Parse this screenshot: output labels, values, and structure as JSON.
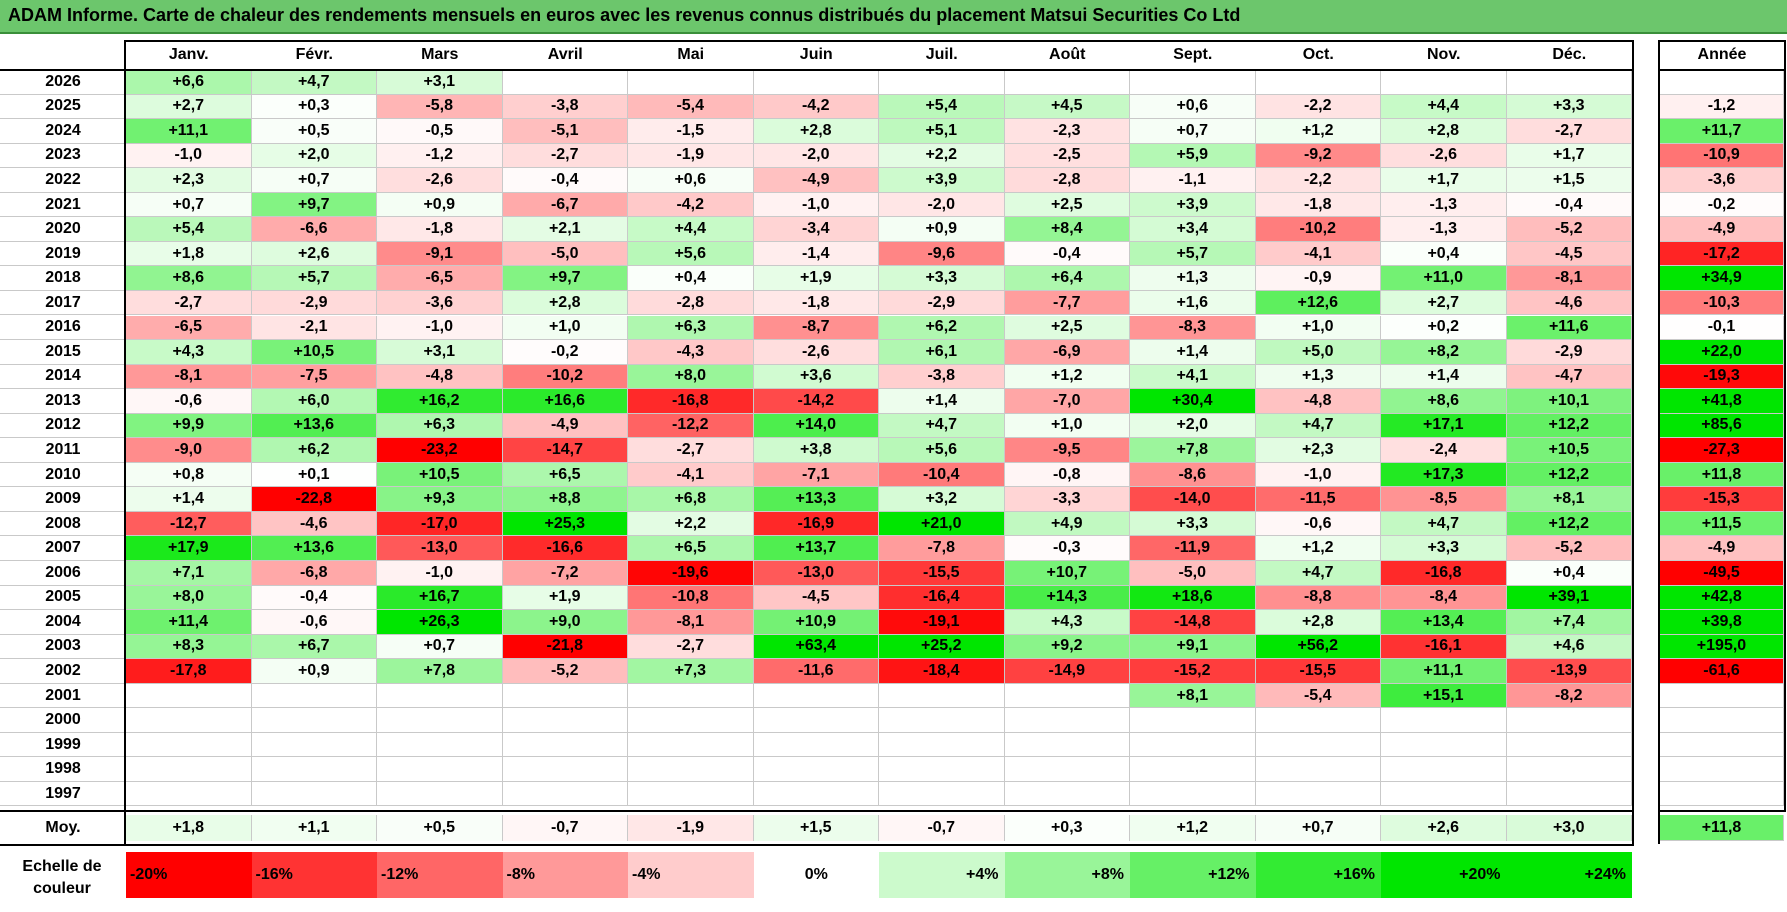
{
  "title": "ADAM Informe. Carte de chaleur des rendements mensuels en euros avec les revenus connus distribués du placement Matsui Securities Co Ltd",
  "chart_data": {
    "type": "heatmap",
    "months": [
      "Janv.",
      "Févr.",
      "Mars",
      "Avril",
      "Mai",
      "Juin",
      "Juil.",
      "Août",
      "Sept.",
      "Oct.",
      "Nov.",
      "Déc."
    ],
    "year_header": "Année",
    "average_label": "Moy.",
    "years": [
      "2026",
      "2025",
      "2024",
      "2023",
      "2022",
      "2021",
      "2020",
      "2019",
      "2018",
      "2017",
      "2016",
      "2015",
      "2014",
      "2013",
      "2012",
      "2011",
      "2010",
      "2009",
      "2008",
      "2007",
      "2006",
      "2005",
      "2004",
      "2003",
      "2002",
      "2001",
      "2000",
      "1999",
      "1998",
      "1997"
    ],
    "rows": [
      [
        "+6,6",
        "+4,7",
        "+3,1",
        "",
        "",
        "",
        "",
        "",
        "",
        "",
        "",
        ""
      ],
      [
        "+2,7",
        "+0,3",
        "-5,8",
        "-3,8",
        "-5,4",
        "-4,2",
        "+5,4",
        "+4,5",
        "+0,6",
        "-2,2",
        "+4,4",
        "+3,3"
      ],
      [
        "+11,1",
        "+0,5",
        "-0,5",
        "-5,1",
        "-1,5",
        "+2,8",
        "+5,1",
        "-2,3",
        "+0,7",
        "+1,2",
        "+2,8",
        "-2,7"
      ],
      [
        "-1,0",
        "+2,0",
        "-1,2",
        "-2,7",
        "-1,9",
        "-2,0",
        "+2,2",
        "-2,5",
        "+5,9",
        "-9,2",
        "-2,6",
        "+1,7"
      ],
      [
        "+2,3",
        "+0,7",
        "-2,6",
        "-0,4",
        "+0,6",
        "-4,9",
        "+3,9",
        "-2,8",
        "-1,1",
        "-2,2",
        "+1,7",
        "+1,5"
      ],
      [
        "+0,7",
        "+9,7",
        "+0,9",
        "-6,7",
        "-4,2",
        "-1,0",
        "-2,0",
        "+2,5",
        "+3,9",
        "-1,8",
        "-1,3",
        "-0,4"
      ],
      [
        "+5,4",
        "-6,6",
        "-1,8",
        "+2,1",
        "+4,4",
        "-3,4",
        "+0,9",
        "+8,4",
        "+3,4",
        "-10,2",
        "-1,3",
        "-5,2"
      ],
      [
        "+1,8",
        "+2,6",
        "-9,1",
        "-5,0",
        "+5,6",
        "-1,4",
        "-9,6",
        "-0,4",
        "+5,7",
        "-4,1",
        "+0,4",
        "-4,5"
      ],
      [
        "+8,6",
        "+5,7",
        "-6,5",
        "+9,7",
        "+0,4",
        "+1,9",
        "+3,3",
        "+6,4",
        "+1,3",
        "-0,9",
        "+11,0",
        "-8,1"
      ],
      [
        "-2,7",
        "-2,9",
        "-3,6",
        "+2,8",
        "-2,8",
        "-1,8",
        "-2,9",
        "-7,7",
        "+1,6",
        "+12,6",
        "+2,7",
        "-4,6"
      ],
      [
        "-6,5",
        "-2,1",
        "-1,0",
        "+1,0",
        "+6,3",
        "-8,7",
        "+6,2",
        "+2,5",
        "-8,3",
        "+1,0",
        "+0,2",
        "+11,6"
      ],
      [
        "+4,3",
        "+10,5",
        "+3,1",
        "-0,2",
        "-4,3",
        "-2,6",
        "+6,1",
        "-6,9",
        "+1,4",
        "+5,0",
        "+8,2",
        "-2,9"
      ],
      [
        "-8,1",
        "-7,5",
        "-4,8",
        "-10,2",
        "+8,0",
        "+3,6",
        "-3,8",
        "+1,2",
        "+4,1",
        "+1,3",
        "+1,4",
        "-4,7"
      ],
      [
        "-0,6",
        "+6,0",
        "+16,2",
        "+16,6",
        "-16,8",
        "-14,2",
        "+1,4",
        "-7,0",
        "+30,4",
        "-4,8",
        "+8,6",
        "+10,1"
      ],
      [
        "+9,9",
        "+13,6",
        "+6,3",
        "-4,9",
        "-12,2",
        "+14,0",
        "+4,7",
        "+1,0",
        "+2,0",
        "+4,7",
        "+17,1",
        "+12,2"
      ],
      [
        "-9,0",
        "+6,2",
        "-23,2",
        "-14,7",
        "-2,7",
        "+3,8",
        "+5,6",
        "-9,5",
        "+7,8",
        "+2,3",
        "-2,4",
        "+10,5"
      ],
      [
        "+0,8",
        "+0,1",
        "+10,5",
        "+6,5",
        "-4,1",
        "-7,1",
        "-10,4",
        "-0,8",
        "-8,6",
        "-1,0",
        "+17,3",
        "+12,2"
      ],
      [
        "+1,4",
        "-22,8",
        "+9,3",
        "+8,8",
        "+6,8",
        "+13,3",
        "+3,2",
        "-3,3",
        "-14,0",
        "-11,5",
        "-8,5",
        "+8,1"
      ],
      [
        "-12,7",
        "-4,6",
        "-17,0",
        "+25,3",
        "+2,2",
        "-16,9",
        "+21,0",
        "+4,9",
        "+3,3",
        "-0,6",
        "+4,7",
        "+12,2"
      ],
      [
        "+17,9",
        "+13,6",
        "-13,0",
        "-16,6",
        "+6,5",
        "+13,7",
        "-7,8",
        "-0,3",
        "-11,9",
        "+1,2",
        "+3,3",
        "-5,2"
      ],
      [
        "+7,1",
        "-6,8",
        "-1,0",
        "-7,2",
        "-19,6",
        "-13,0",
        "-15,5",
        "+10,7",
        "-5,0",
        "+4,7",
        "-16,8",
        "+0,4"
      ],
      [
        "+8,0",
        "-0,4",
        "+16,7",
        "+1,9",
        "-10,8",
        "-4,5",
        "-16,4",
        "+14,3",
        "+18,6",
        "-8,8",
        "-8,4",
        "+39,1"
      ],
      [
        "+11,4",
        "-0,6",
        "+26,3",
        "+9,0",
        "-8,1",
        "+10,9",
        "-19,1",
        "+4,3",
        "-14,8",
        "+2,8",
        "+13,4",
        "+7,4"
      ],
      [
        "+8,3",
        "+6,7",
        "+0,7",
        "-21,8",
        "-2,7",
        "+63,4",
        "+25,2",
        "+9,2",
        "+9,1",
        "+56,2",
        "-16,1",
        "+4,6"
      ],
      [
        "-17,8",
        "+0,9",
        "+7,8",
        "-5,2",
        "+7,3",
        "-11,6",
        "-18,4",
        "-14,9",
        "-15,2",
        "-15,5",
        "+11,1",
        "-13,9"
      ],
      [
        "",
        "",
        "",
        "",
        "",
        "",
        "",
        "",
        "+8,1",
        "-5,4",
        "+15,1",
        "-8,2"
      ],
      [
        "",
        "",
        "",
        "",
        "",
        "",
        "",
        "",
        "",
        "",
        "",
        ""
      ],
      [
        "",
        "",
        "",
        "",
        "",
        "",
        "",
        "",
        "",
        "",
        "",
        ""
      ],
      [
        "",
        "",
        "",
        "",
        "",
        "",
        "",
        "",
        "",
        "",
        "",
        ""
      ],
      [
        "",
        "",
        "",
        "",
        "",
        "",
        "",
        "",
        "",
        "",
        "",
        ""
      ]
    ],
    "annual": [
      "",
      "-1,2",
      "+11,7",
      "-10,9",
      "-3,6",
      "-0,2",
      "-4,9",
      "-17,2",
      "+34,9",
      "-10,3",
      "-0,1",
      "+22,0",
      "-19,3",
      "+41,8",
      "+85,6",
      "-27,3",
      "+11,8",
      "-15,3",
      "+11,5",
      "-4,9",
      "-49,5",
      "+42,8",
      "+39,8",
      "+195,0",
      "-61,6",
      "",
      "",
      "",
      "",
      ""
    ],
    "averages": [
      "+1,8",
      "+1,1",
      "+0,5",
      "-0,7",
      "-1,9",
      "+1,5",
      "-0,7",
      "+0,3",
      "+1,2",
      "+0,7",
      "+2,6",
      "+3,0"
    ],
    "average_annual": "+11,8",
    "scale_label_line1": "Echelle de",
    "scale_label_line2": "couleur",
    "scale": [
      "-20%",
      "-16%",
      "-12%",
      "-8%",
      "-4%",
      "0%",
      "+4%",
      "+8%",
      "+12%",
      "+16%",
      "+20%",
      "+24%"
    ],
    "scale_values": [
      -20,
      -16,
      -12,
      -8,
      -4,
      0,
      4,
      8,
      12,
      16,
      20,
      24
    ]
  }
}
